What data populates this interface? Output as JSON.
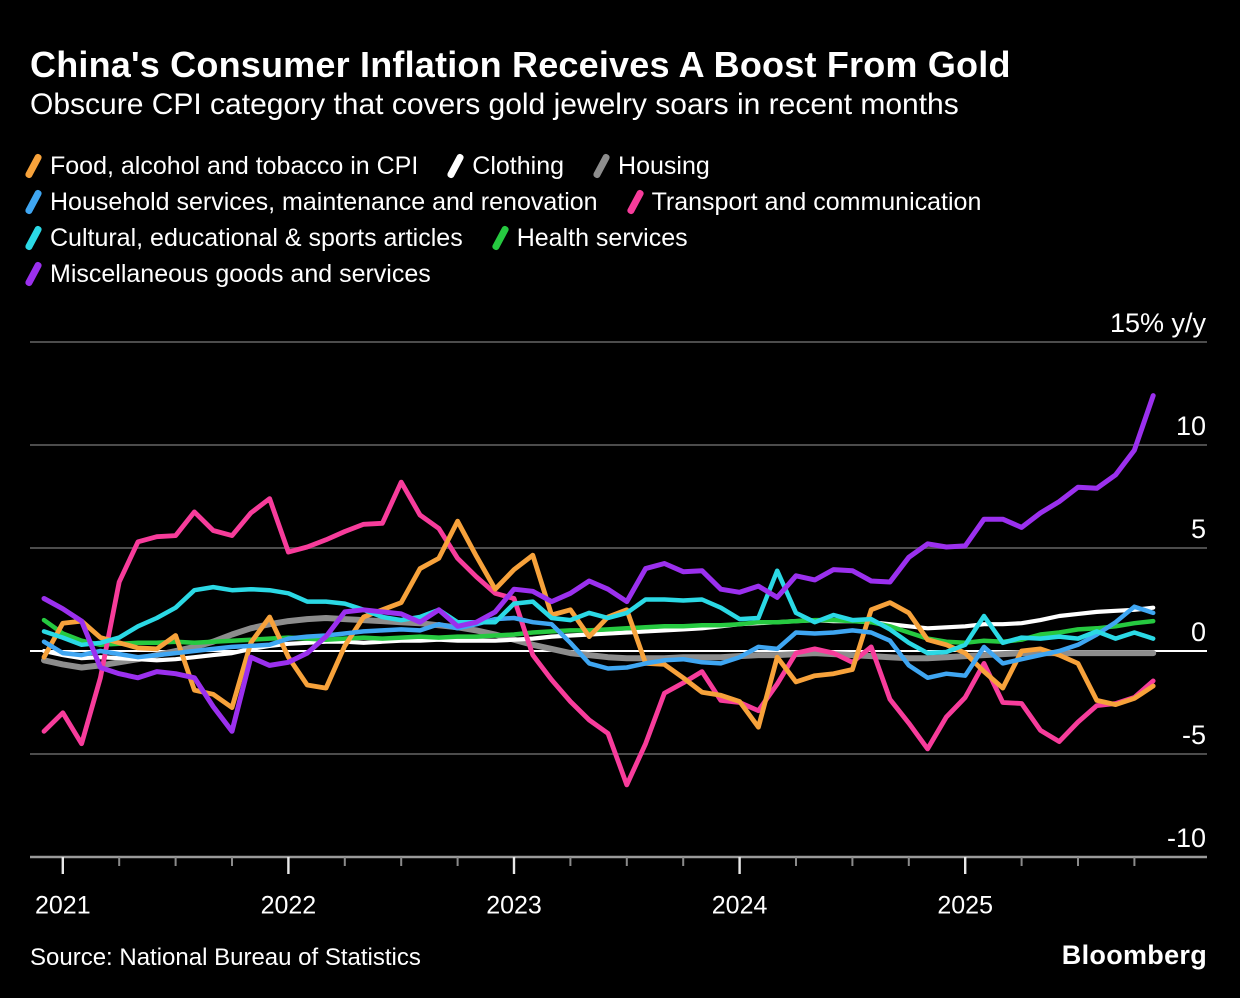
{
  "header": {
    "title": "China's Consumer Inflation Receives A Boost From Gold",
    "subtitle": "Obscure CPI category that covers gold jewelry soars in recent months"
  },
  "footer": {
    "source": "Source: National Bureau of Statistics",
    "brand": "Bloomberg"
  },
  "legend": {
    "rows": [
      [
        "food",
        "clothing",
        "housing"
      ],
      [
        "household_services",
        "transport"
      ],
      [
        "cultural",
        "health"
      ],
      [
        "misc"
      ]
    ]
  },
  "chart_data": {
    "type": "line",
    "unit": "% y/y",
    "x_start": "Dec 2020",
    "x_end": "Nov 2025",
    "points_per_series": 60,
    "grid": "horizontal",
    "legend_position": "top-left",
    "background": "#000000",
    "colors": {
      "gridline": "#4C4C4C",
      "zero_line": "#FFFFFF",
      "axis_line": "#9A9A9A",
      "major_tick": "#E8E8E8",
      "minor_tick": "#8A8A8A",
      "text": "#FFFFFF"
    },
    "x_axis": {
      "years": [
        "2021",
        "2022",
        "2023",
        "2024",
        "2025"
      ]
    },
    "y_axis": {
      "ylim": [
        -12,
        15.5
      ],
      "ticks": [
        {
          "value": 15,
          "label": "15% y/y"
        },
        {
          "value": 10,
          "label": "10"
        },
        {
          "value": 5,
          "label": "5"
        },
        {
          "value": 0,
          "label": "0"
        },
        {
          "value": -5,
          "label": "-5"
        },
        {
          "value": -10,
          "label": "-10"
        }
      ],
      "gridline_values": [
        15,
        10,
        5,
        -5
      ],
      "zero_line_value": 0,
      "bottom_axis_value": -10
    },
    "series": [
      {
        "id": "food",
        "name": "Food, alcohol and tobacco in CPI",
        "color": "#F7A23B",
        "stroke_width": 4.8,
        "values": [
          -0.3,
          1.35,
          1.45,
          0.65,
          0.4,
          0.15,
          0.1,
          0.75,
          -1.9,
          -2.1,
          -2.75,
          0.4,
          1.65,
          -0.3,
          -1.65,
          -1.8,
          0.25,
          1.65,
          2.0,
          2.35,
          4.0,
          4.5,
          6.3,
          4.6,
          3.0,
          3.95,
          4.65,
          1.75,
          2.0,
          0.7,
          1.65,
          2.0,
          -0.6,
          -0.65,
          -1.3,
          -2.0,
          -2.15,
          -2.45,
          -3.7,
          -0.3,
          -1.5,
          -1.2,
          -1.1,
          -0.9,
          2.0,
          2.35,
          1.85,
          0.55,
          0.3,
          -0.1,
          -1.0,
          -1.8,
          0.0,
          0.1,
          -0.2,
          -0.6,
          -2.4,
          -2.6,
          -2.3,
          -1.7
        ]
      },
      {
        "id": "clothing",
        "name": "Clothing",
        "color": "#FFFFFF",
        "stroke_width": 4.2,
        "values": [
          0.0,
          -0.2,
          -0.35,
          -0.3,
          -0.35,
          -0.4,
          -0.45,
          -0.4,
          -0.3,
          -0.2,
          -0.1,
          0.1,
          0.25,
          0.35,
          0.4,
          0.45,
          0.45,
          0.4,
          0.45,
          0.5,
          0.5,
          0.55,
          0.5,
          0.5,
          0.5,
          0.55,
          0.6,
          0.7,
          0.75,
          0.8,
          0.85,
          0.9,
          0.95,
          1.0,
          1.05,
          1.1,
          1.2,
          1.3,
          1.35,
          1.4,
          1.45,
          1.5,
          1.45,
          1.45,
          1.4,
          1.3,
          1.2,
          1.1,
          1.15,
          1.2,
          1.3,
          1.3,
          1.35,
          1.5,
          1.7,
          1.8,
          1.9,
          1.95,
          2.0,
          2.1
        ]
      },
      {
        "id": "housing",
        "name": "Housing",
        "color": "#8D8D8D",
        "stroke_width": 6,
        "values": [
          -0.45,
          -0.65,
          -0.8,
          -0.7,
          -0.55,
          -0.4,
          -0.2,
          0.0,
          0.2,
          0.45,
          0.8,
          1.1,
          1.3,
          1.45,
          1.55,
          1.6,
          1.55,
          1.5,
          1.45,
          1.4,
          1.35,
          1.25,
          1.15,
          1.0,
          0.8,
          0.55,
          0.3,
          0.1,
          -0.1,
          -0.2,
          -0.3,
          -0.35,
          -0.35,
          -0.35,
          -0.3,
          -0.3,
          -0.3,
          -0.25,
          -0.2,
          -0.2,
          -0.15,
          -0.1,
          -0.15,
          -0.2,
          -0.25,
          -0.3,
          -0.35,
          -0.35,
          -0.3,
          -0.25,
          -0.2,
          -0.15,
          -0.1,
          -0.1,
          -0.1,
          -0.1,
          -0.1,
          -0.1,
          -0.1,
          -0.1
        ]
      },
      {
        "id": "household_services",
        "name": "Household services, maintenance and renovation",
        "color": "#3FA6F2",
        "stroke_width": 4.5,
        "values": [
          0.45,
          -0.1,
          -0.2,
          0.0,
          -0.15,
          -0.3,
          -0.2,
          -0.1,
          0.0,
          0.1,
          0.2,
          0.25,
          0.3,
          0.6,
          0.7,
          0.75,
          0.85,
          0.95,
          1.0,
          1.05,
          1.0,
          1.3,
          1.1,
          1.3,
          1.55,
          1.6,
          1.4,
          1.3,
          0.4,
          -0.6,
          -0.85,
          -0.8,
          -0.6,
          -0.45,
          -0.4,
          -0.55,
          -0.6,
          -0.3,
          0.2,
          0.1,
          0.9,
          0.85,
          0.9,
          1.0,
          0.9,
          0.5,
          -0.7,
          -1.3,
          -1.1,
          -1.2,
          0.2,
          -0.6,
          -0.4,
          -0.2,
          0.0,
          0.3,
          0.8,
          1.4,
          2.15,
          1.85
        ]
      },
      {
        "id": "transport",
        "name": "Transport and communication",
        "color": "#F73C9B",
        "stroke_width": 4.8,
        "values": [
          -3.9,
          -3.0,
          -4.5,
          -1.3,
          3.35,
          5.3,
          5.55,
          5.6,
          6.75,
          5.85,
          5.6,
          6.7,
          7.4,
          4.8,
          5.05,
          5.4,
          5.8,
          6.15,
          6.2,
          8.2,
          6.6,
          5.95,
          4.5,
          3.6,
          2.8,
          2.55,
          -0.2,
          -1.4,
          -2.45,
          -3.35,
          -4.0,
          -6.5,
          -4.5,
          -2.05,
          -1.55,
          -1.0,
          -2.4,
          -2.5,
          -2.9,
          -1.6,
          -0.1,
          0.1,
          -0.1,
          -0.55,
          0.2,
          -2.35,
          -3.5,
          -4.75,
          -3.2,
          -2.25,
          -0.6,
          -2.5,
          -2.55,
          -3.85,
          -4.4,
          -3.45,
          -2.65,
          -2.55,
          -2.25,
          -1.45
        ]
      },
      {
        "id": "cultural",
        "name": "Cultural, educational & sports articles",
        "color": "#2BD9E5",
        "stroke_width": 4.5,
        "values": [
          0.95,
          0.65,
          0.3,
          0.4,
          0.65,
          1.2,
          1.6,
          2.1,
          2.95,
          3.1,
          2.95,
          3.0,
          2.95,
          2.8,
          2.4,
          2.4,
          2.3,
          2.0,
          1.65,
          1.5,
          1.65,
          2.0,
          1.4,
          1.4,
          1.4,
          2.3,
          2.4,
          1.6,
          1.5,
          1.85,
          1.6,
          1.85,
          2.5,
          2.5,
          2.45,
          2.5,
          2.1,
          1.55,
          1.6,
          3.9,
          1.85,
          1.4,
          1.75,
          1.5,
          1.55,
          1.05,
          0.4,
          -0.1,
          -0.05,
          0.3,
          1.7,
          0.4,
          0.65,
          0.6,
          0.7,
          0.6,
          0.95,
          0.6,
          0.9,
          0.6
        ]
      },
      {
        "id": "health",
        "name": "Health services",
        "color": "#26C940",
        "stroke_width": 4.5,
        "values": [
          1.5,
          0.85,
          0.5,
          0.3,
          0.35,
          0.4,
          0.4,
          0.45,
          0.4,
          0.45,
          0.5,
          0.55,
          0.6,
          0.65,
          0.6,
          0.55,
          0.6,
          0.65,
          0.6,
          0.65,
          0.7,
          0.65,
          0.7,
          0.7,
          0.75,
          0.8,
          0.9,
          0.95,
          1.0,
          1.0,
          1.05,
          1.1,
          1.15,
          1.2,
          1.2,
          1.25,
          1.25,
          1.3,
          1.4,
          1.4,
          1.45,
          1.5,
          1.5,
          1.45,
          1.4,
          1.2,
          0.9,
          0.6,
          0.45,
          0.4,
          0.5,
          0.45,
          0.55,
          0.8,
          0.9,
          1.05,
          1.1,
          1.2,
          1.35,
          1.45
        ]
      },
      {
        "id": "misc",
        "name": "Miscellaneous goods and services",
        "color": "#9B30EE",
        "stroke_width": 5,
        "values": [
          2.55,
          2.05,
          1.45,
          -0.8,
          -1.1,
          -1.3,
          -1.0,
          -1.1,
          -1.3,
          -2.7,
          -3.9,
          -0.3,
          -0.7,
          -0.55,
          -0.1,
          0.7,
          1.9,
          2.0,
          1.9,
          1.8,
          1.4,
          2.0,
          1.2,
          1.4,
          1.9,
          3.0,
          2.9,
          2.4,
          2.8,
          3.4,
          3.0,
          2.4,
          4.0,
          4.25,
          3.85,
          3.9,
          3.0,
          2.85,
          3.15,
          2.6,
          3.65,
          3.45,
          3.95,
          3.9,
          3.4,
          3.35,
          4.55,
          5.2,
          5.05,
          5.1,
          6.4,
          6.4,
          6.0,
          6.7,
          7.25,
          7.95,
          7.9,
          8.55,
          9.75,
          12.4
        ]
      }
    ]
  }
}
